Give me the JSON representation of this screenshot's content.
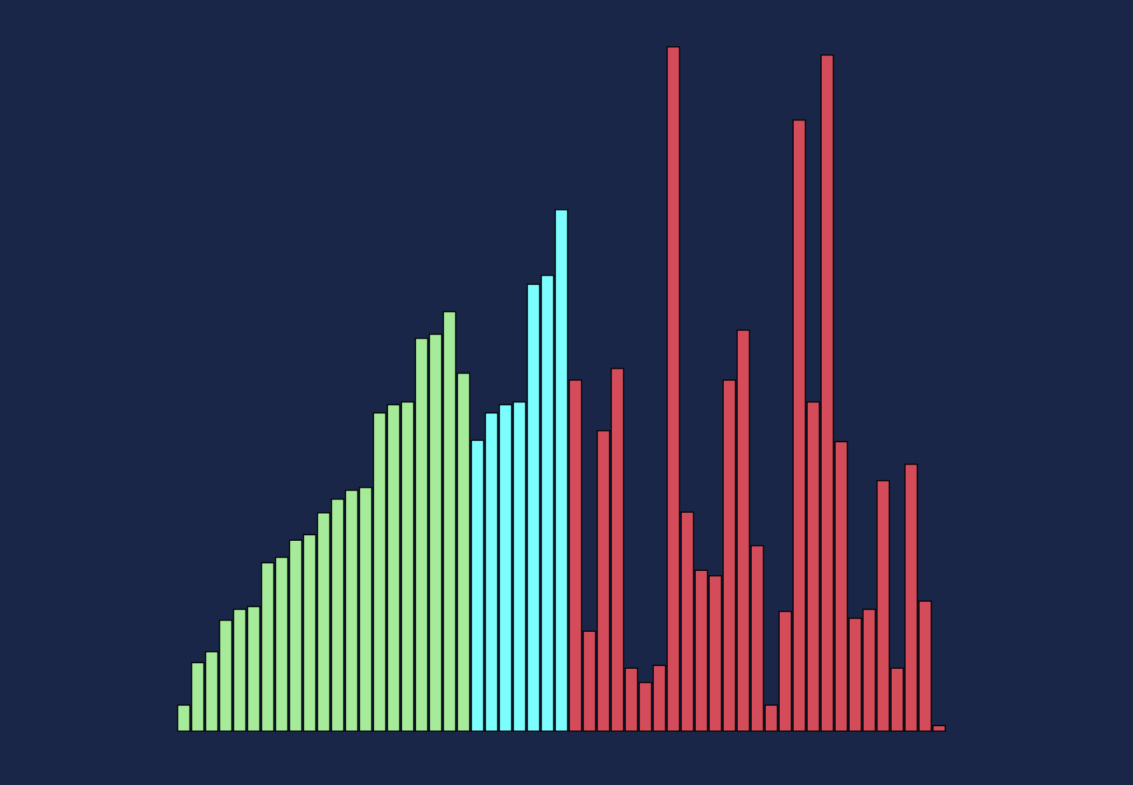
{
  "chart_data": {
    "type": "bar",
    "title": "",
    "xlabel": "",
    "ylabel": "",
    "grid": false,
    "legend": "none",
    "axes_visible": false,
    "ylim": [
      0,
      100
    ],
    "background": "#1a2648",
    "bar_outline_color": "#000000",
    "series": [
      {
        "color": "#a6eb9a",
        "values": [
          3.8,
          10.0,
          11.6,
          16.2,
          17.8,
          18.2,
          24.6,
          25.4,
          27.9,
          28.7,
          31.9,
          33.9,
          35.2,
          35.6,
          46.5,
          47.7,
          48.1,
          57.4,
          58.0,
          61.3,
          52.3
        ]
      },
      {
        "color": "#7dfefe",
        "values": [
          42.5,
          46.5,
          47.7,
          48.1,
          65.3,
          66.6,
          76.2
        ]
      },
      {
        "color": "#d44c5a",
        "values": [
          51.3,
          14.6,
          43.9,
          53.0,
          9.2,
          7.1,
          9.6,
          100.0,
          32.0,
          23.5,
          22.7,
          51.3,
          58.6,
          27.1,
          3.8,
          17.5,
          89.3,
          48.1,
          98.8,
          42.3,
          16.5,
          17.8,
          36.6,
          9.2,
          39.0,
          19.0,
          0.8
        ]
      }
    ]
  }
}
